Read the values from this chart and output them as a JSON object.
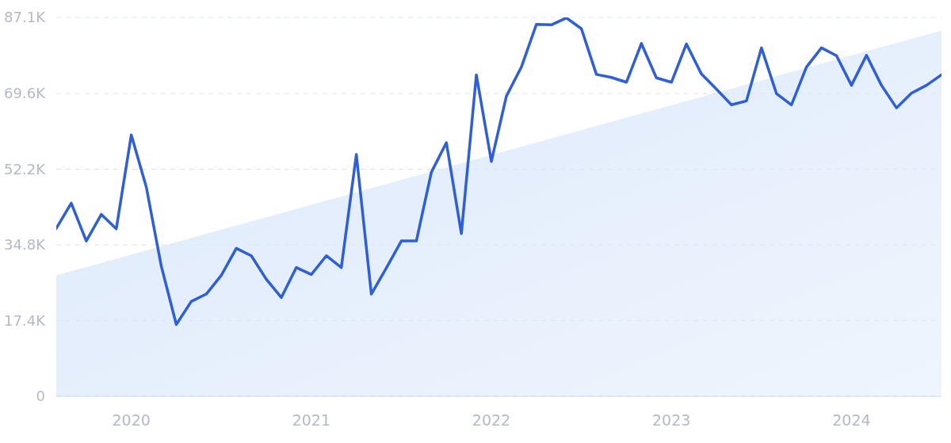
{
  "chart_data": {
    "type": "line",
    "x": [
      "2019-08",
      "2019-09",
      "2019-10",
      "2019-11",
      "2019-12",
      "2020-01",
      "2020-02",
      "2020-03",
      "2020-04",
      "2020-05",
      "2020-06",
      "2020-07",
      "2020-08",
      "2020-09",
      "2020-10",
      "2020-11",
      "2020-12",
      "2021-01",
      "2021-02",
      "2021-03",
      "2021-04",
      "2021-05",
      "2021-06",
      "2021-07",
      "2021-08",
      "2021-09",
      "2021-10",
      "2021-11",
      "2021-12",
      "2022-01",
      "2022-02",
      "2022-03",
      "2022-04",
      "2022-05",
      "2022-06",
      "2022-07",
      "2022-08",
      "2022-09",
      "2022-10",
      "2022-11",
      "2022-12",
      "2023-01",
      "2023-02",
      "2023-03",
      "2023-04",
      "2023-05",
      "2023-06",
      "2023-07",
      "2023-08",
      "2023-09",
      "2023-10",
      "2023-11",
      "2023-12",
      "2024-01",
      "2024-02",
      "2024-03",
      "2024-04",
      "2024-05",
      "2024-06",
      "2024-07"
    ],
    "series": [
      {
        "type": "area",
        "color": "#dce9fb",
        "x": [
          "2019-08",
          "2024-07"
        ],
        "values": [
          27.8,
          84.1
        ]
      },
      {
        "color": "#2f5fd6",
        "values": [
          38.6,
          44.4,
          35.7,
          41.8,
          38.5,
          60.1,
          48.1,
          29.9,
          16.5,
          21.8,
          23.5,
          27.8,
          34.0,
          32.3,
          26.9,
          22.7,
          29.6,
          28.0,
          32.3,
          29.6,
          55.6,
          23.5,
          29.5,
          35.7,
          35.7,
          51.5,
          58.3,
          37.4,
          73.9,
          54.0,
          69.0,
          75.7,
          85.5,
          85.4,
          87.0,
          84.5,
          74.0,
          73.3,
          72.2,
          81.1,
          73.2,
          72.2,
          81.0,
          74.1,
          70.6,
          67.0,
          67.9,
          80.1,
          69.6,
          67.0,
          75.7,
          80.1,
          78.3,
          71.5,
          78.4,
          71.5,
          66.3,
          69.7,
          71.5,
          73.9
        ]
      }
    ],
    "xlim": [
      "2019-08",
      "2024-07"
    ],
    "xticks": [
      "2020",
      "2021",
      "2022",
      "2023",
      "2024"
    ],
    "ylim": [
      0,
      87.1
    ],
    "yticks": [
      {
        "value": 0,
        "label": "0"
      },
      {
        "value": 17.4,
        "label": "17.4K"
      },
      {
        "value": 34.8,
        "label": "34.8K"
      },
      {
        "value": 52.2,
        "label": "52.2K"
      },
      {
        "value": 69.6,
        "label": "69.6K"
      },
      {
        "value": 87.1,
        "label": "87.1K"
      }
    ],
    "grid": "y",
    "marker": "none",
    "line_style": "solid"
  }
}
